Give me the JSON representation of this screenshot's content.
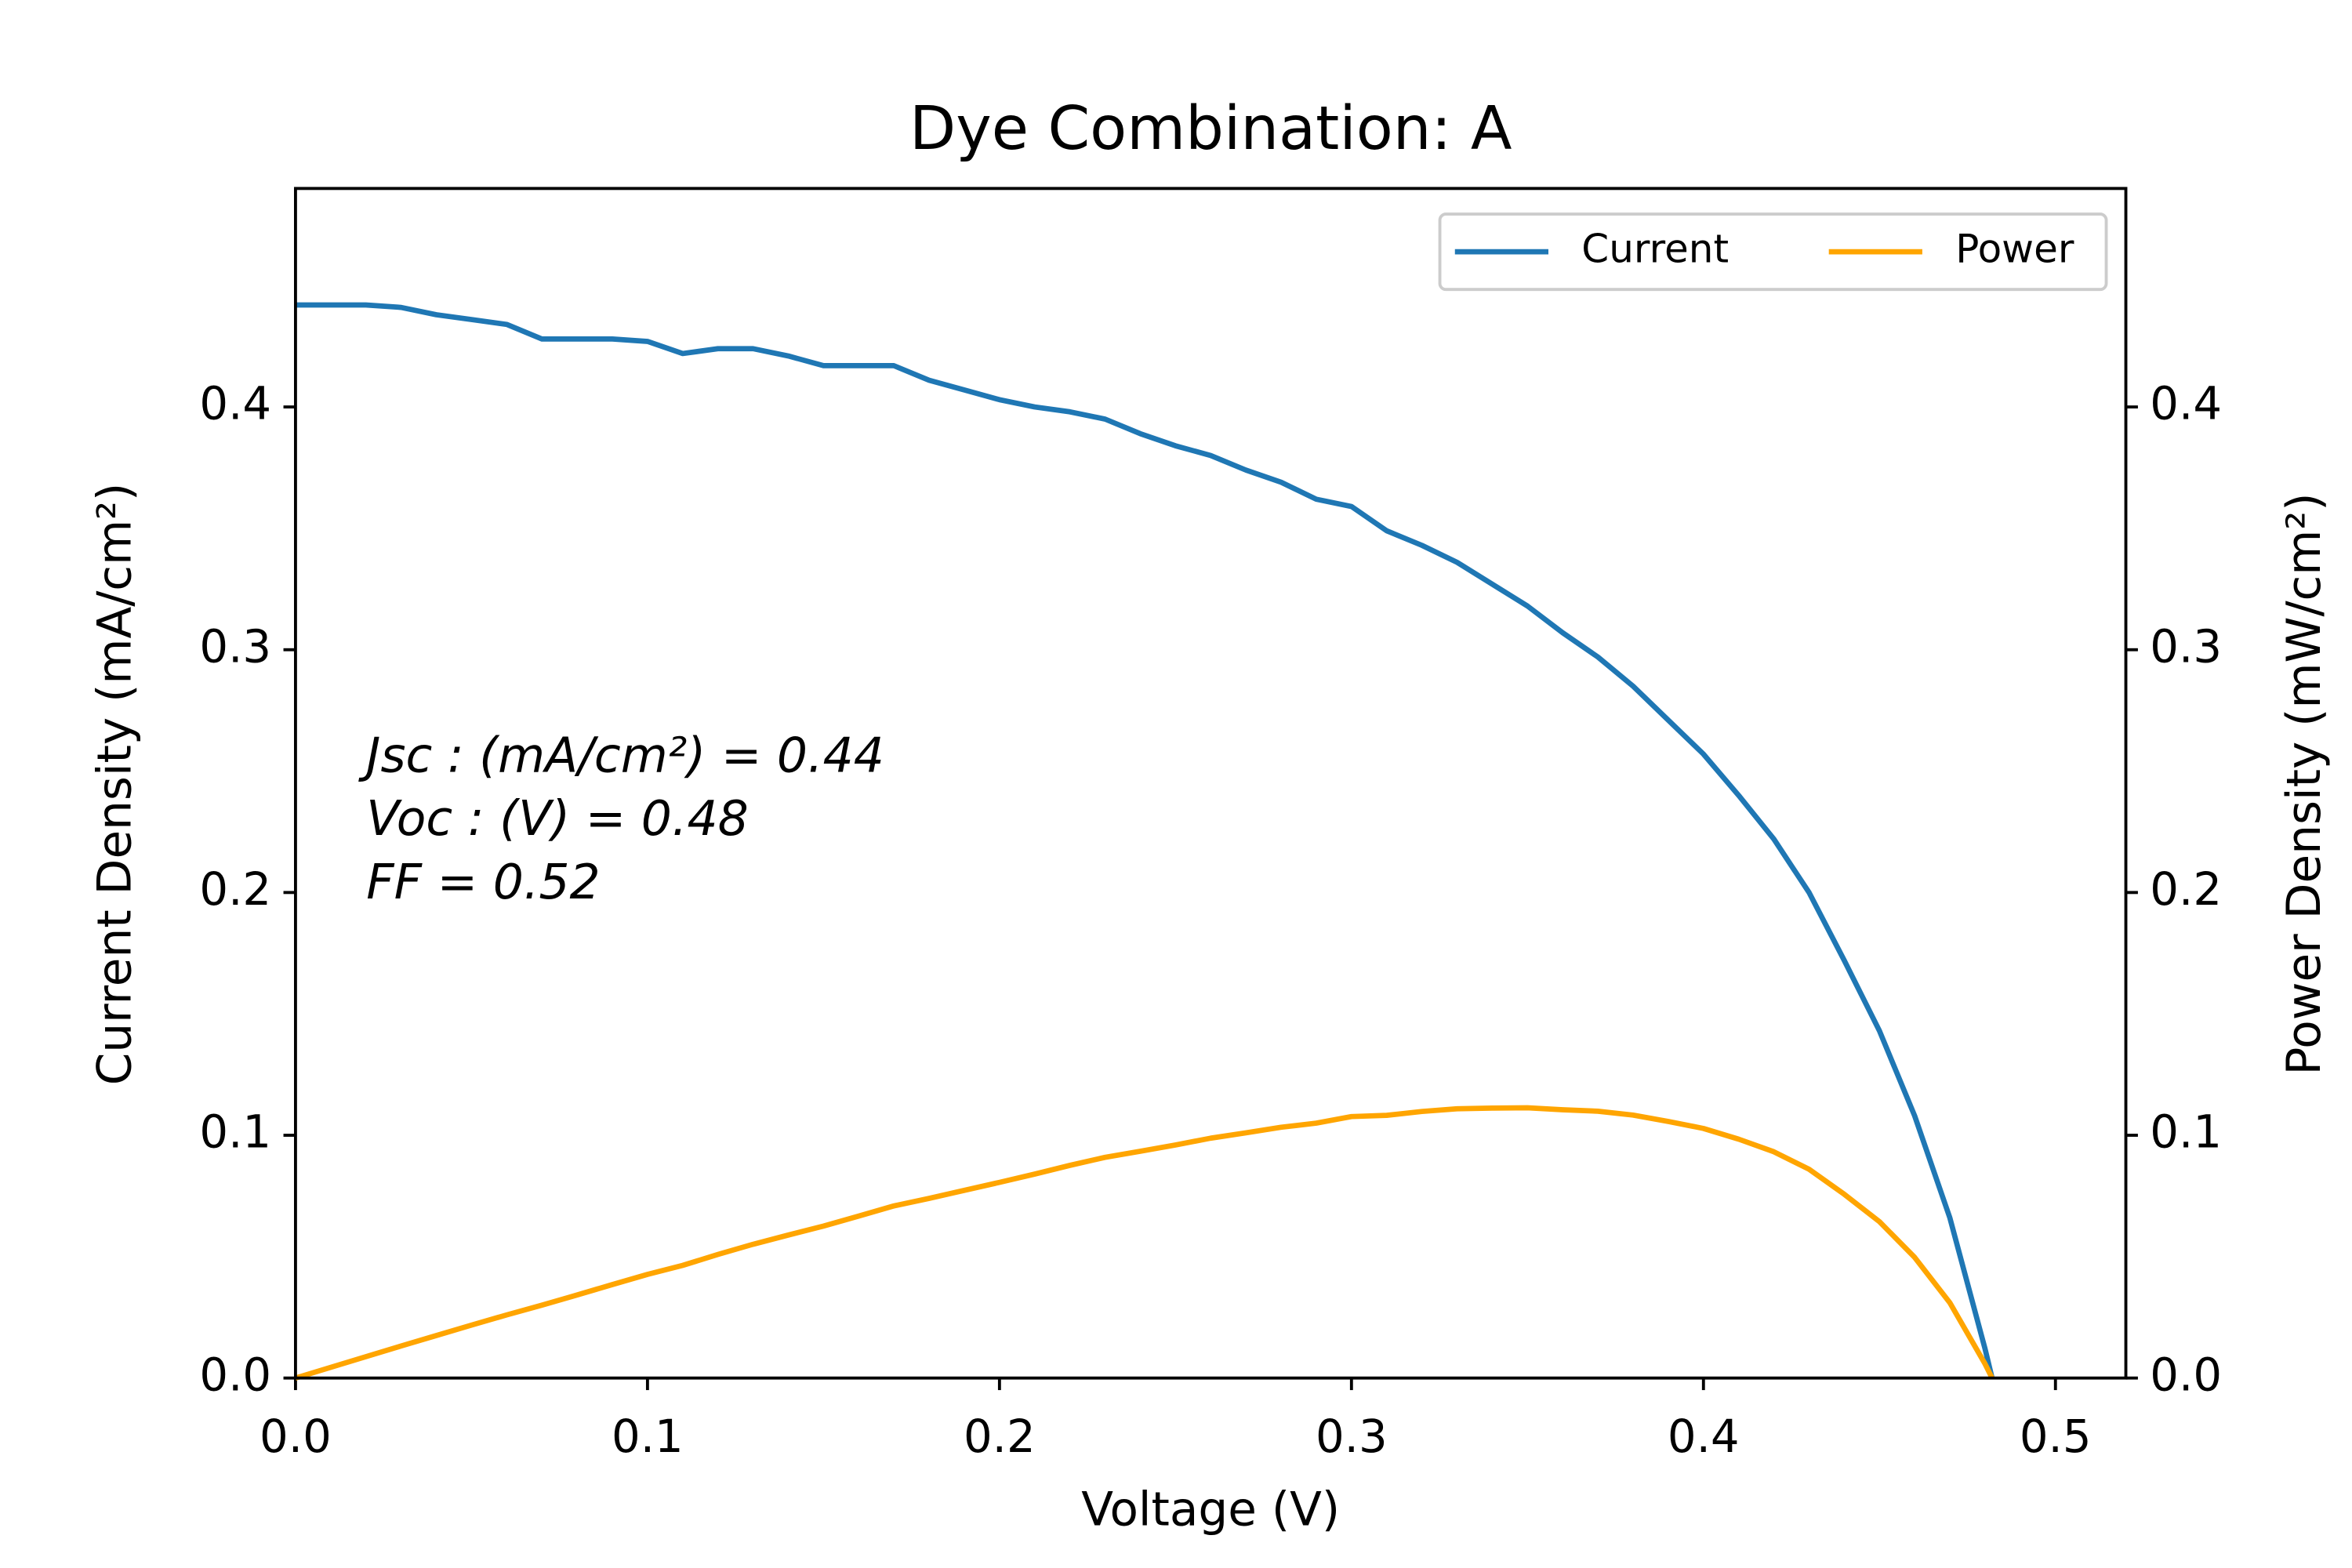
{
  "chart_data": {
    "type": "line",
    "title": "Dye Combination: A",
    "x_label": "Voltage (V)",
    "y_label": "Current Density (mA/cm²)",
    "y2_label": "Power Density (mW/cm²)",
    "annotations": [
      "Jsc : (mA/cm²) = 0.44",
      "Voc : (V) = 0.48",
      "FF = 0.52"
    ],
    "x": [
      0,
      0.01,
      0.02,
      0.03,
      0.04,
      0.05,
      0.06,
      0.07,
      0.08,
      0.09,
      0.1,
      0.11,
      0.12,
      0.13,
      0.14,
      0.15,
      0.16,
      0.17,
      0.18,
      0.19,
      0.2,
      0.21,
      0.22,
      0.23,
      0.24,
      0.25,
      0.26,
      0.27,
      0.28,
      0.29,
      0.3,
      0.31,
      0.32,
      0.33,
      0.34,
      0.35,
      0.36,
      0.37,
      0.38,
      0.39,
      0.4,
      0.41,
      0.42,
      0.43,
      0.44,
      0.45,
      0.46,
      0.47,
      0.48,
      0.482
    ],
    "series": [
      {
        "name": "Current",
        "color": "#1f77b4",
        "values": [
          0.442,
          0.442,
          0.442,
          0.441,
          0.438,
          0.436,
          0.434,
          0.428,
          0.428,
          0.428,
          0.427,
          0.422,
          0.424,
          0.424,
          0.421,
          0.417,
          0.417,
          0.417,
          0.411,
          0.407,
          0.403,
          0.4,
          0.398,
          0.395,
          0.389,
          0.384,
          0.38,
          0.374,
          0.369,
          0.362,
          0.359,
          0.349,
          0.343,
          0.336,
          0.327,
          0.318,
          0.307,
          0.297,
          0.285,
          0.271,
          0.257,
          0.24,
          0.222,
          0.2,
          0.172,
          0.143,
          0.108,
          0.066,
          0.012,
          0
        ]
      },
      {
        "name": "Power",
        "color": "#ffa500",
        "axis": "y2",
        "values": [
          0,
          0.0044,
          0.0088,
          0.0132,
          0.0175,
          0.0218,
          0.026,
          0.03,
          0.0342,
          0.0385,
          0.0427,
          0.0464,
          0.0509,
          0.0551,
          0.0589,
          0.0626,
          0.0667,
          0.0709,
          0.074,
          0.0773,
          0.0806,
          0.084,
          0.0876,
          0.0909,
          0.0934,
          0.096,
          0.0988,
          0.101,
          0.1033,
          0.105,
          0.1077,
          0.1082,
          0.1098,
          0.1109,
          0.1112,
          0.1113,
          0.1105,
          0.1099,
          0.1083,
          0.1057,
          0.1028,
          0.0984,
          0.0932,
          0.086,
          0.0757,
          0.0644,
          0.0497,
          0.031,
          0.0058,
          0
        ]
      }
    ],
    "xlim": [
      0,
      0.52
    ],
    "xticks": [
      {
        "value": 0,
        "label": "0.0"
      },
      0.1,
      0.2,
      0.3,
      0.4,
      0.5
    ],
    "ylim": [
      0,
      0.49
    ],
    "yticks": [
      {
        "value": 0,
        "label": "0.0"
      },
      0.1,
      0.2,
      0.3,
      0.4
    ],
    "y2lim": [
      0,
      0.49
    ],
    "y2ticks": [
      {
        "value": 0,
        "label": "0.0"
      },
      0.1,
      0.2,
      0.3,
      0.4
    ],
    "legend": "upper right",
    "grid": false
  }
}
